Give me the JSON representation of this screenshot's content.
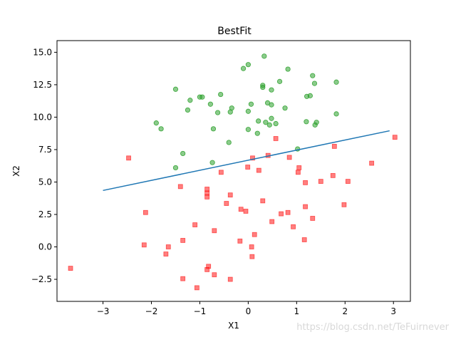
{
  "chart_data": {
    "type": "scatter",
    "title": "BestFit",
    "xlabel": "X1",
    "ylabel": "X2",
    "xlim": [
      -3.95,
      3.35
    ],
    "ylim": [
      -4.2,
      15.9
    ],
    "xticks": [
      -3,
      -2,
      -1,
      0,
      1,
      2,
      3
    ],
    "yticks": [
      -2.5,
      0.0,
      2.5,
      5.0,
      7.5,
      10.0,
      12.5,
      15.0
    ],
    "xtick_labels": [
      "−3",
      "−2",
      "−1",
      "0",
      "1",
      "2",
      "3"
    ],
    "ytick_labels": [
      "−2.5",
      "0.0",
      "2.5",
      "5.0",
      "7.5",
      "10.0",
      "12.5",
      "15.0"
    ],
    "grid": false,
    "series": [
      {
        "marker": "circle",
        "color": "#2ca02c",
        "points": [
          [
            0.33,
            14.7
          ],
          [
            0.0,
            14.05
          ],
          [
            -0.1,
            13.75
          ],
          [
            0.82,
            13.7
          ],
          [
            1.33,
            13.2
          ],
          [
            0.3,
            12.45
          ],
          [
            0.3,
            12.3
          ],
          [
            0.65,
            12.75
          ],
          [
            1.37,
            12.6
          ],
          [
            1.82,
            12.7
          ],
          [
            -1.5,
            12.15
          ],
          [
            0.48,
            12.1
          ],
          [
            -1.0,
            11.55
          ],
          [
            -0.95,
            11.55
          ],
          [
            -0.57,
            11.75
          ],
          [
            -1.2,
            11.3
          ],
          [
            1.28,
            11.65
          ],
          [
            1.21,
            11.6
          ],
          [
            0.4,
            11.1
          ],
          [
            0.06,
            11.0
          ],
          [
            -0.78,
            11.0
          ],
          [
            -0.34,
            10.7
          ],
          [
            0.48,
            10.95
          ],
          [
            0.76,
            10.7
          ],
          [
            -1.25,
            10.55
          ],
          [
            -0.37,
            10.4
          ],
          [
            0.0,
            10.45
          ],
          [
            -0.63,
            10.35
          ],
          [
            1.82,
            10.25
          ],
          [
            0.48,
            9.9
          ],
          [
            0.21,
            9.7
          ],
          [
            1.2,
            9.65
          ],
          [
            0.36,
            9.6
          ],
          [
            0.57,
            9.5
          ],
          [
            1.41,
            9.6
          ],
          [
            -1.9,
            9.55
          ],
          [
            1.38,
            9.4
          ],
          [
            0.44,
            9.4
          ],
          [
            -1.8,
            9.1
          ],
          [
            -0.72,
            9.1
          ],
          [
            0.0,
            9.05
          ],
          [
            0.19,
            8.75
          ],
          [
            -0.4,
            8.05
          ],
          [
            -1.35,
            7.2
          ],
          [
            1.02,
            7.55
          ],
          [
            -0.74,
            6.5
          ],
          [
            -1.5,
            6.1
          ]
        ]
      },
      {
        "marker": "square",
        "color": "#ff0000",
        "points": [
          [
            -2.47,
            6.85
          ],
          [
            1.78,
            7.75
          ],
          [
            3.03,
            8.45
          ],
          [
            0.57,
            8.35
          ],
          [
            0.09,
            6.85
          ],
          [
            0.41,
            7.05
          ],
          [
            0.85,
            6.9
          ],
          [
            2.55,
            6.45
          ],
          [
            -0.01,
            6.15
          ],
          [
            1.05,
            6.1
          ],
          [
            0.22,
            5.9
          ],
          [
            -0.56,
            5.75
          ],
          [
            1.03,
            5.75
          ],
          [
            1.75,
            5.5
          ],
          [
            2.06,
            5.05
          ],
          [
            1.5,
            5.05
          ],
          [
            1.18,
            4.95
          ],
          [
            -1.4,
            4.65
          ],
          [
            -0.85,
            4.45
          ],
          [
            -0.85,
            4.15
          ],
          [
            -0.37,
            4.0
          ],
          [
            -0.85,
            3.85
          ],
          [
            0.3,
            3.55
          ],
          [
            -0.45,
            3.35
          ],
          [
            1.98,
            3.25
          ],
          [
            1.18,
            3.1
          ],
          [
            -0.15,
            2.9
          ],
          [
            -0.05,
            2.75
          ],
          [
            0.82,
            2.65
          ],
          [
            -2.12,
            2.65
          ],
          [
            0.68,
            2.55
          ],
          [
            1.33,
            2.2
          ],
          [
            0.49,
            1.95
          ],
          [
            -1.1,
            1.7
          ],
          [
            0.93,
            1.55
          ],
          [
            -0.7,
            1.25
          ],
          [
            0.13,
            0.95
          ],
          [
            -1.35,
            0.5
          ],
          [
            -0.17,
            0.45
          ],
          [
            1.16,
            0.55
          ],
          [
            -2.15,
            0.15
          ],
          [
            -1.65,
            0.0
          ],
          [
            0.07,
            0.0
          ],
          [
            -1.7,
            -0.55
          ],
          [
            0.08,
            -0.75
          ],
          [
            -3.67,
            -1.65
          ],
          [
            -0.82,
            -1.5
          ],
          [
            -0.85,
            -1.75
          ],
          [
            -0.7,
            -2.15
          ],
          [
            -1.35,
            -2.45
          ],
          [
            -0.37,
            -2.5
          ],
          [
            -1.06,
            -3.15
          ]
        ]
      },
      {
        "type": "line",
        "color": "#1f77b4",
        "points": [
          [
            -3.0,
            4.35
          ],
          [
            2.92,
            8.95
          ]
        ]
      }
    ]
  },
  "watermark": "https://blog.csdn.net/TeFuirnever"
}
